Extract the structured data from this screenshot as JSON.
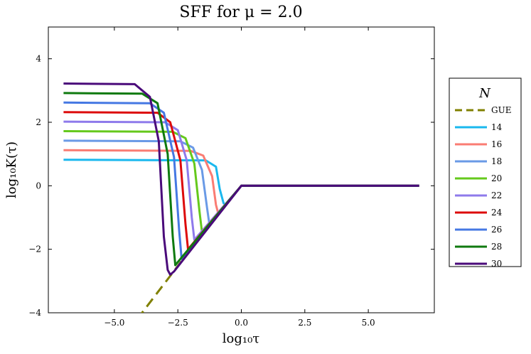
{
  "chart_data": {
    "type": "line",
    "title": "SFF for μ = 2.0",
    "xlabel": "log₁₀τ",
    "ylabel": "log₁₀K(τ)",
    "xlim": [
      -7.6,
      7.6
    ],
    "ylim": [
      -4,
      5
    ],
    "xticks": [
      -5.0,
      -2.5,
      0.0,
      2.5,
      5.0
    ],
    "xtick_labels": [
      "−5.0",
      "−2.5",
      "0.0",
      "2.5",
      "5.0"
    ],
    "yticks": [
      -4,
      -2,
      0,
      2,
      4
    ],
    "ytick_labels": [
      "−4",
      "−2",
      "0",
      "2",
      "4"
    ],
    "grid": false,
    "legend": {
      "title": "N",
      "position": "outside-right"
    },
    "series": [
      {
        "name": "GUE",
        "color": "#808000",
        "dash": true,
        "plateau": null,
        "x": [
          -4.1,
          -2.0,
          0.0,
          7.0
        ],
        "y": [
          -4.2,
          -2.0,
          0.0,
          0.0
        ]
      },
      {
        "name": "14",
        "color": "#1ab8ee",
        "plateau": 0.82,
        "x": [
          -7.0,
          -1.4,
          -1.0,
          -0.85,
          -0.7,
          -0.6,
          0.0,
          7.0
        ],
        "y": [
          0.82,
          0.8,
          0.6,
          -0.1,
          -0.55,
          -0.6,
          0.0,
          0.0
        ]
      },
      {
        "name": "16",
        "color": "#fa7c73",
        "plateau": 1.12,
        "x": [
          -7.0,
          -2.0,
          -1.5,
          -1.15,
          -1.0,
          -0.9,
          0.0,
          7.0
        ],
        "y": [
          1.12,
          1.1,
          0.95,
          0.3,
          -0.6,
          -0.9,
          0.0,
          0.0
        ]
      },
      {
        "name": "18",
        "color": "#6a9ae6",
        "plateau": 1.42,
        "x": [
          -7.0,
          -2.4,
          -1.9,
          -1.55,
          -1.35,
          -1.25,
          0.0,
          7.0
        ],
        "y": [
          1.42,
          1.4,
          1.2,
          0.5,
          -0.7,
          -1.25,
          0.0,
          0.0
        ]
      },
      {
        "name": "20",
        "color": "#65c91c",
        "plateau": 1.72,
        "x": [
          -7.0,
          -2.7,
          -2.2,
          -1.85,
          -1.65,
          -1.55,
          0.0,
          7.0
        ],
        "y": [
          1.72,
          1.7,
          1.5,
          0.7,
          -0.8,
          -1.45,
          0.0,
          0.0
        ]
      },
      {
        "name": "22",
        "color": "#8e7aeb",
        "plateau": 2.02,
        "x": [
          -7.0,
          -3.0,
          -2.5,
          -2.15,
          -1.95,
          -1.85,
          0.0,
          7.0
        ],
        "y": [
          2.02,
          2.0,
          1.75,
          0.8,
          -1.0,
          -1.7,
          0.0,
          0.0
        ]
      },
      {
        "name": "24",
        "color": "#dd0b0b",
        "plateau": 2.32,
        "x": [
          -7.0,
          -3.3,
          -2.8,
          -2.4,
          -2.2,
          -2.1,
          0.0,
          7.0
        ],
        "y": [
          2.32,
          2.3,
          2.0,
          0.8,
          -1.2,
          -2.0,
          0.0,
          0.0
        ]
      },
      {
        "name": "26",
        "color": "#4578e3",
        "plateau": 2.62,
        "x": [
          -7.0,
          -3.6,
          -3.05,
          -2.65,
          -2.45,
          -2.35,
          0.0,
          7.0
        ],
        "y": [
          2.62,
          2.6,
          2.3,
          0.9,
          -1.4,
          -2.3,
          0.0,
          0.0
        ]
      },
      {
        "name": "28",
        "color": "#0f7a0f",
        "plateau": 2.92,
        "x": [
          -7.0,
          -3.9,
          -3.3,
          -2.9,
          -2.7,
          -2.6,
          0.0,
          7.0
        ],
        "y": [
          2.92,
          2.9,
          2.6,
          1.0,
          -1.6,
          -2.5,
          0.0,
          0.0
        ]
      },
      {
        "name": "30",
        "color": "#4a0a7a",
        "plateau": 3.22,
        "x": [
          -7.0,
          -4.2,
          -3.6,
          -3.25,
          -3.05,
          -2.9,
          -2.8,
          -2.65,
          0.0,
          7.0
        ],
        "y": [
          3.22,
          3.2,
          2.8,
          1.4,
          -1.6,
          -2.65,
          -2.8,
          -2.7,
          0.0,
          0.0
        ]
      }
    ]
  }
}
